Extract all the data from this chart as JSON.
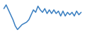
{
  "values": [
    3.5,
    5.0,
    3.0,
    1.0,
    -1.0,
    -3.5,
    -5.0,
    -4.0,
    -3.0,
    -2.5,
    -2.0,
    -1.0,
    1.0,
    3.0,
    2.0,
    4.5,
    3.0,
    2.0,
    3.5,
    1.5,
    3.0,
    1.5,
    3.0,
    1.5,
    2.5,
    0.5,
    2.5,
    0.5,
    2.0,
    1.0,
    2.0,
    0.5,
    2.5,
    1.0,
    2.0
  ],
  "line_color": "#3a7fc1",
  "linewidth": 1.1,
  "background_color": "#ffffff",
  "ylim": [
    -6,
    7
  ]
}
